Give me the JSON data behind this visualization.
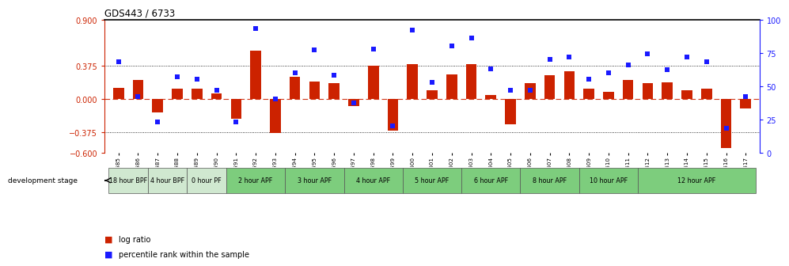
{
  "title": "GDS443 / 6733",
  "samples": [
    "GSM4585",
    "GSM4586",
    "GSM4587",
    "GSM4588",
    "GSM4589",
    "GSM4590",
    "GSM4591",
    "GSM4592",
    "GSM4593",
    "GSM4594",
    "GSM4595",
    "GSM4596",
    "GSM4597",
    "GSM4598",
    "GSM4599",
    "GSM4600",
    "GSM4601",
    "GSM4602",
    "GSM4603",
    "GSM4604",
    "GSM4605",
    "GSM4606",
    "GSM4607",
    "GSM4608",
    "GSM4609",
    "GSM4610",
    "GSM4611",
    "GSM4612",
    "GSM4613",
    "GSM4614",
    "GSM4615",
    "GSM4616",
    "GSM4617"
  ],
  "log_ratio": [
    0.13,
    0.22,
    -0.15,
    0.12,
    0.12,
    0.07,
    -0.22,
    0.55,
    -0.38,
    0.25,
    0.2,
    0.18,
    -0.08,
    0.38,
    -0.35,
    0.4,
    0.1,
    0.28,
    0.4,
    0.05,
    -0.28,
    0.18,
    0.27,
    0.32,
    0.12,
    0.08,
    0.22,
    0.18,
    0.19,
    0.1,
    0.12,
    -0.55,
    -0.1
  ],
  "percentile_rank": [
    68,
    42,
    23,
    57,
    55,
    47,
    23,
    93,
    40,
    60,
    77,
    58,
    37,
    78,
    20,
    92,
    53,
    80,
    86,
    63,
    47,
    47,
    70,
    72,
    55,
    60,
    66,
    74,
    62,
    72,
    68,
    18,
    42
  ],
  "stages": [
    {
      "label": "18 hour BPF",
      "start": 0,
      "end": 1,
      "color": "#d0e8d0"
    },
    {
      "label": "4 hour BPF",
      "start": 2,
      "end": 3,
      "color": "#d0e8d0"
    },
    {
      "label": "0 hour PF",
      "start": 4,
      "end": 5,
      "color": "#d0e8d0"
    },
    {
      "label": "2 hour APF",
      "start": 6,
      "end": 8,
      "color": "#7dcd7d"
    },
    {
      "label": "3 hour APF",
      "start": 9,
      "end": 11,
      "color": "#7dcd7d"
    },
    {
      "label": "4 hour APF",
      "start": 12,
      "end": 14,
      "color": "#7dcd7d"
    },
    {
      "label": "5 hour APF",
      "start": 15,
      "end": 17,
      "color": "#7dcd7d"
    },
    {
      "label": "6 hour APF",
      "start": 18,
      "end": 20,
      "color": "#7dcd7d"
    },
    {
      "label": "8 hour APF",
      "start": 21,
      "end": 23,
      "color": "#7dcd7d"
    },
    {
      "label": "10 hour APF",
      "start": 24,
      "end": 26,
      "color": "#7dcd7d"
    },
    {
      "label": "12 hour APF",
      "start": 27,
      "end": 32,
      "color": "#7dcd7d"
    }
  ],
  "ylim_left": [
    -0.6,
    0.9
  ],
  "ylim_right": [
    0,
    100
  ],
  "yticks_left": [
    -0.6,
    -0.375,
    0.0,
    0.375,
    0.9
  ],
  "yticks_right": [
    0,
    25,
    50,
    75,
    100
  ],
  "hlines": [
    0.375,
    -0.375
  ],
  "bar_color": "#cc2200",
  "square_color": "#1a1aff",
  "zero_line_color": "#cc2200",
  "left_color": "#cc2200",
  "right_color": "#1a1aff"
}
